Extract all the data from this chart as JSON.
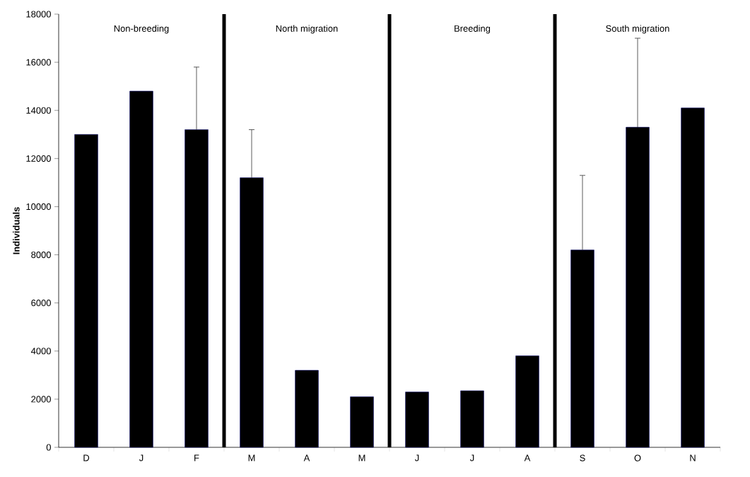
{
  "chart_data": {
    "type": "bar",
    "ylabel": "Individuals",
    "categories": [
      "D",
      "J",
      "F",
      "M",
      "A",
      "M",
      "J",
      "J",
      "A",
      "S",
      "O",
      "N"
    ],
    "values": [
      13000,
      14800,
      13200,
      11200,
      3200,
      2100,
      2300,
      2350,
      3800,
      8200,
      13300,
      14100
    ],
    "errors": [
      null,
      null,
      [
        13200,
        15800
      ],
      [
        11200,
        13200
      ],
      null,
      null,
      null,
      null,
      null,
      [
        8200,
        11300
      ],
      [
        13300,
        17000
      ],
      null
    ],
    "color": "#000000",
    "ylim": [
      0,
      18000
    ],
    "yticks": [
      0,
      2000,
      4000,
      6000,
      8000,
      10000,
      12000,
      14000,
      16000,
      18000
    ],
    "grid": false,
    "annotations": [
      "Non-breeding",
      "North migration",
      "Breeding",
      "South migration"
    ]
  }
}
